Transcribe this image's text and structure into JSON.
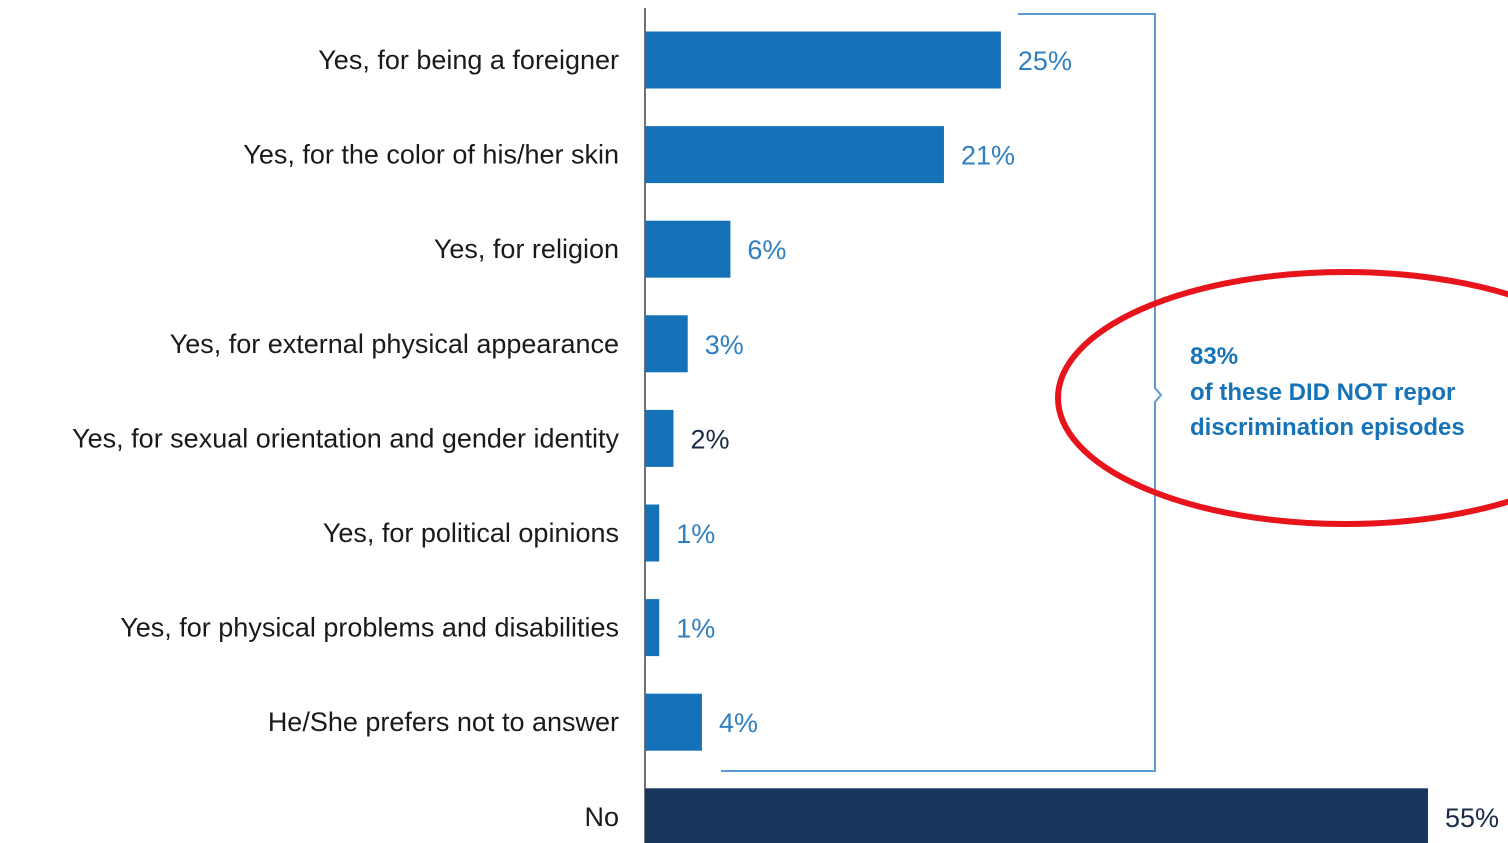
{
  "chart_data": {
    "type": "bar",
    "orientation": "horizontal",
    "title": "",
    "xlabel": "",
    "ylabel": "",
    "categories": [
      "Yes, for being a foreigner",
      "Yes, for the color of his/her skin",
      "Yes, for religion",
      "Yes, for external physical appearance",
      "Yes, for sexual orientation and gender identity",
      "Yes, for political opinions",
      "Yes, for physical problems and disabilities",
      "He/She prefers not to answer",
      "No"
    ],
    "values": [
      25,
      21,
      6,
      3,
      2,
      1,
      1,
      4,
      55
    ],
    "value_labels": [
      "25%",
      "21%",
      "6%",
      "3%",
      "2%",
      "1%",
      "1%",
      "4%",
      "55%"
    ],
    "xlim": [
      0,
      55
    ],
    "grid": false,
    "bar_colors": [
      "#1572b9",
      "#1572b9",
      "#1572b9",
      "#1572b9",
      "#1572b9",
      "#1572b9",
      "#1572b9",
      "#1572b9",
      "#17375e"
    ],
    "label_colors": [
      "#2f7fc1",
      "#2f7fc1",
      "#2f7fc1",
      "#2f7fc1",
      "#1a2b45",
      "#2f7fc1",
      "#2f7fc1",
      "#2f7fc1",
      "#1a2b45"
    ],
    "annotation": {
      "percent": "83%",
      "line1": "of these DID NOT repor",
      "line2": "discrimination episodes",
      "text_color": "#1673b8",
      "bracket_color": "#5a9bd5",
      "highlight_color": "#e8141b"
    }
  }
}
